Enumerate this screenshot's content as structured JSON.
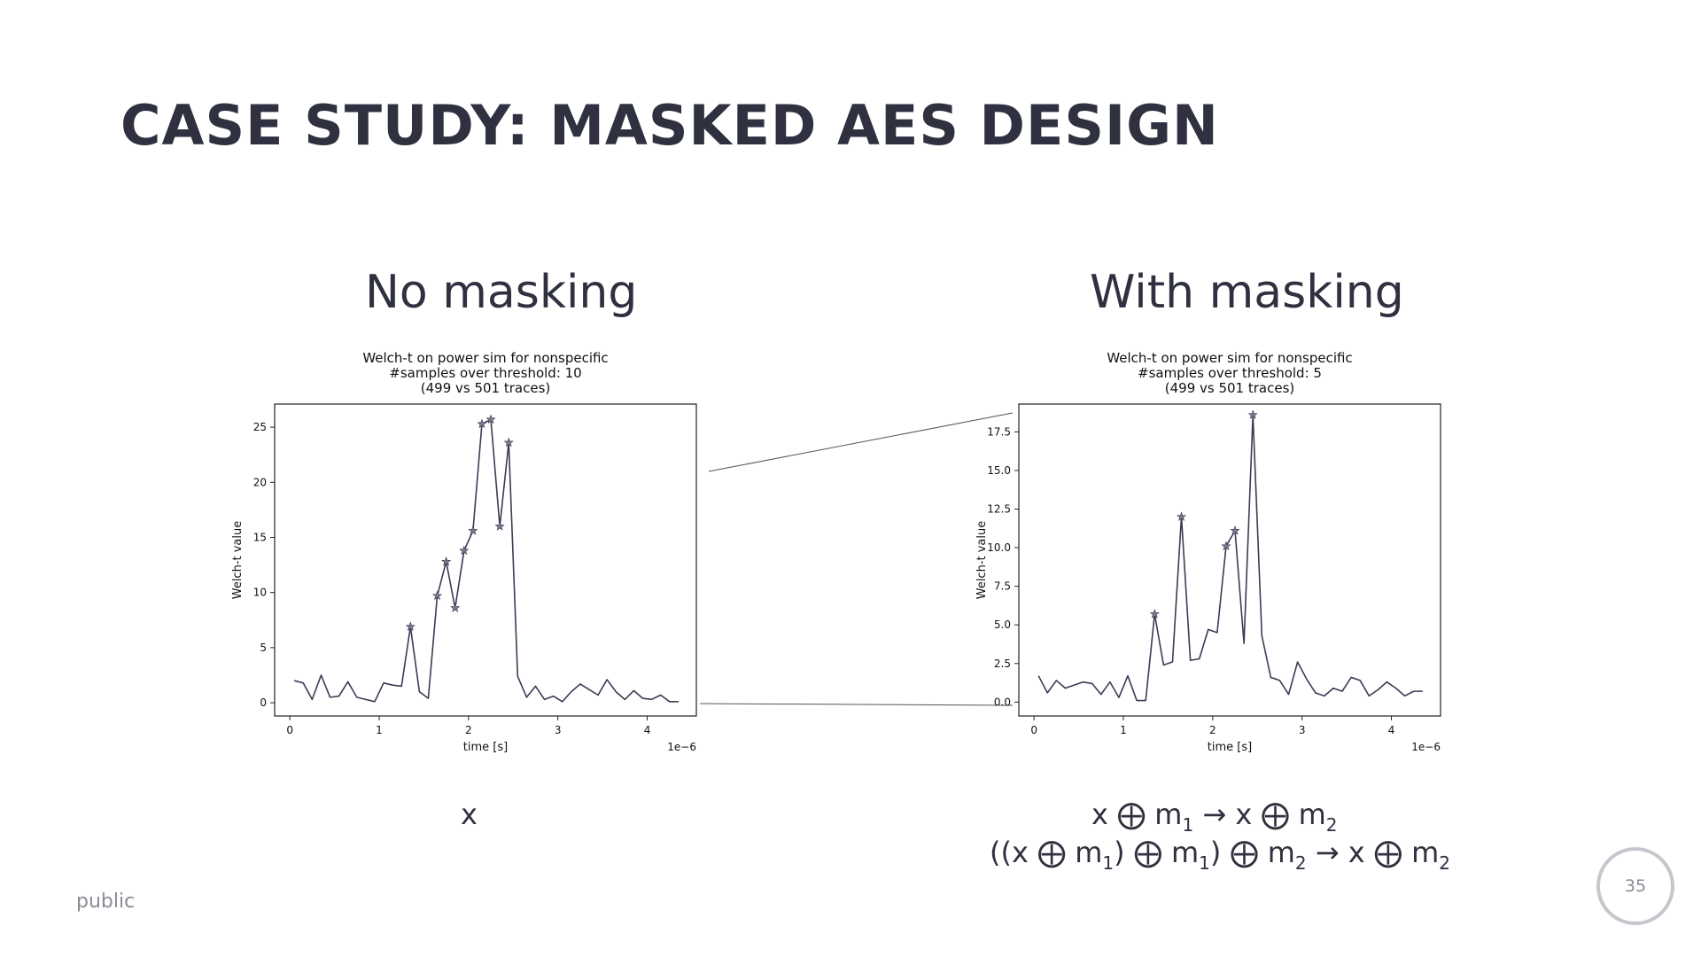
{
  "slide": {
    "title": "CASE STUDY: MASKED AES DESIGN",
    "footer": "public",
    "page_number": "35"
  },
  "panels": {
    "left": {
      "heading": "No masking",
      "formula": "x"
    },
    "right": {
      "heading": "With masking",
      "formula_line1": {
        "a": "x ⨁ m",
        "s1": "1",
        "b": " → x ⨁ m",
        "s2": "2"
      },
      "formula_line2": {
        "a": "((x ⨁ m",
        "s1": "1",
        "b": ") ⨁ m",
        "s2": "1",
        "c": ") ⨁ m",
        "s3": "2",
        "d": " → x ⨁ m",
        "s4": "2"
      }
    }
  },
  "chart_data": [
    {
      "type": "line",
      "title": [
        "Welch-t on power sim for nonspecific",
        "#samples over threshold: 10",
        "(499 vs 501 traces)"
      ],
      "xlabel": "time [s]",
      "ylabel": "Welch-t value",
      "x_offset_label": "1e−6",
      "xlim": [
        -0.17,
        4.55
      ],
      "ylim": [
        -1.2,
        27.1
      ],
      "xticks": [
        0,
        1,
        2,
        3,
        4
      ],
      "yticks": [
        0,
        5,
        10,
        15,
        20,
        25
      ],
      "ytick_labels": [
        "0",
        "5",
        "10",
        "15",
        "20",
        "25"
      ],
      "line_color": "#3b3b55",
      "marker": "star",
      "x": [
        0.05,
        0.15,
        0.25,
        0.35,
        0.45,
        0.55,
        0.65,
        0.75,
        0.85,
        0.95,
        1.05,
        1.15,
        1.25,
        1.35,
        1.45,
        1.55,
        1.65,
        1.75,
        1.85,
        1.95,
        2.05,
        2.15,
        2.25,
        2.35,
        2.45,
        2.55,
        2.65,
        2.75,
        2.85,
        2.95,
        3.05,
        3.15,
        3.25,
        3.35,
        3.45,
        3.55,
        3.65,
        3.75,
        3.85,
        3.95,
        4.05,
        4.15,
        4.25,
        4.35
      ],
      "y": [
        2.0,
        1.8,
        0.3,
        2.5,
        0.5,
        0.6,
        1.9,
        0.5,
        0.3,
        0.1,
        1.8,
        1.6,
        1.5,
        6.9,
        1.0,
        0.4,
        9.7,
        12.8,
        8.6,
        13.8,
        15.6,
        25.3,
        25.7,
        16.0,
        23.6,
        2.4,
        0.5,
        1.5,
        0.3,
        0.6,
        0.1,
        1.0,
        1.7,
        1.2,
        0.7,
        2.1,
        1.0,
        0.3,
        1.1,
        0.4,
        0.3,
        0.7,
        0.1,
        0.1
      ],
      "markers_x": [
        1.35,
        1.65,
        1.75,
        1.85,
        1.95,
        2.05,
        2.15,
        2.25,
        2.35,
        2.45
      ],
      "markers_y": [
        6.9,
        9.7,
        12.8,
        8.6,
        13.8,
        15.6,
        25.3,
        25.7,
        16.0,
        23.6
      ]
    },
    {
      "type": "line",
      "title": [
        "Welch-t on power sim for nonspecific",
        "#samples over threshold: 5",
        "(499 vs 501 traces)"
      ],
      "xlabel": "time [s]",
      "ylabel": "Welch-t value",
      "x_offset_label": "1e−6",
      "xlim": [
        -0.17,
        4.55
      ],
      "ylim": [
        -0.9,
        19.3
      ],
      "xticks": [
        0,
        1,
        2,
        3,
        4
      ],
      "yticks": [
        0,
        2.5,
        5,
        7.5,
        10,
        12.5,
        15,
        17.5
      ],
      "ytick_labels": [
        "0.0",
        "2.5",
        "5.0",
        "7.5",
        "10.0",
        "12.5",
        "15.0",
        "17.5"
      ],
      "line_color": "#3b3b55",
      "marker": "star",
      "x": [
        0.05,
        0.15,
        0.25,
        0.35,
        0.45,
        0.55,
        0.65,
        0.75,
        0.85,
        0.95,
        1.05,
        1.15,
        1.25,
        1.35,
        1.45,
        1.55,
        1.65,
        1.75,
        1.85,
        1.95,
        2.05,
        2.15,
        2.25,
        2.35,
        2.45,
        2.55,
        2.65,
        2.75,
        2.85,
        2.95,
        3.05,
        3.15,
        3.25,
        3.35,
        3.45,
        3.55,
        3.65,
        3.75,
        3.85,
        3.95,
        4.05,
        4.15,
        4.25,
        4.35
      ],
      "y": [
        1.7,
        0.6,
        1.4,
        0.9,
        1.1,
        1.3,
        1.2,
        0.5,
        1.3,
        0.3,
        1.7,
        0.1,
        0.1,
        5.7,
        2.4,
        2.6,
        12.0,
        2.7,
        2.8,
        4.7,
        4.5,
        10.1,
        11.1,
        3.8,
        18.6,
        4.3,
        1.6,
        1.4,
        0.5,
        2.6,
        1.5,
        0.6,
        0.4,
        0.9,
        0.7,
        1.6,
        1.4,
        0.4,
        0.8,
        1.3,
        0.9,
        0.4,
        0.7,
        0.7
      ],
      "markers_x": [
        1.35,
        1.65,
        2.15,
        2.25,
        2.45
      ],
      "markers_y": [
        5.7,
        12.0,
        10.1,
        11.1,
        18.6
      ]
    }
  ]
}
